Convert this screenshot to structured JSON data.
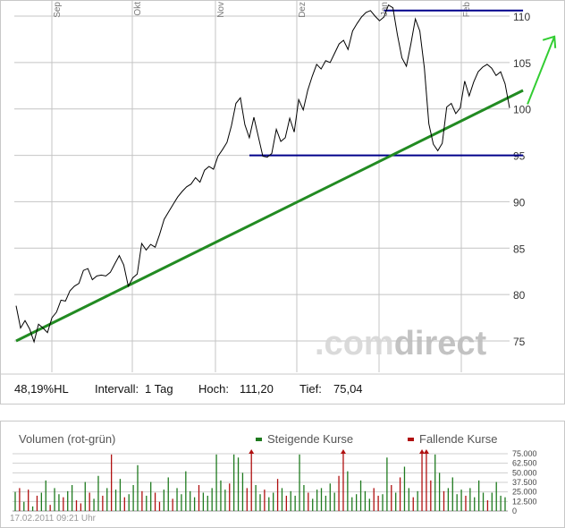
{
  "chart_data": [
    {
      "type": "line",
      "months": [
        "Sep",
        "Okt",
        "Nov",
        "Dez",
        "Jan",
        "Feb"
      ],
      "yticks": [
        "75",
        "80",
        "85",
        "90",
        "95",
        "100",
        "105",
        "110"
      ],
      "ylim": [
        72,
        114
      ],
      "series": [
        {
          "y": [
            78.8,
            76.4,
            77.2,
            76.3,
            74.9,
            76.8,
            76.4,
            75.9,
            77.5,
            78.1,
            79.4,
            79.3,
            80.4,
            80.9,
            81.2,
            82.6,
            82.8,
            81.6,
            82.0,
            82.1,
            82.0,
            82.4,
            83.3,
            84.2,
            83.2,
            80.9,
            81.8,
            82.2,
            85.5,
            84.8,
            85.4,
            85.1,
            86.5,
            88.1,
            88.9,
            89.7,
            90.5,
            91.1,
            91.6,
            91.9,
            92.6,
            92.1,
            93.4,
            93.8,
            93.5,
            94.9,
            95.6,
            96.4,
            98.2,
            100.6,
            101.2,
            98.3,
            96.9,
            99.1,
            97.0,
            94.9,
            94.8,
            95.2,
            97.8,
            96.5,
            96.9,
            99.0,
            97.5,
            101.0,
            99.9,
            102.0,
            103.5,
            104.8,
            104.3,
            105.2,
            105.0,
            106.0,
            107.0,
            107.4,
            106.4,
            108.4,
            109.2,
            109.9,
            110.4,
            110.6,
            110.0,
            109.5,
            109.9,
            111.2,
            110.9,
            108.0,
            105.5,
            104.6,
            107.0,
            109.7,
            108.4,
            104.4,
            98.4,
            96.2,
            95.5,
            96.3,
            100.2,
            100.6,
            99.5,
            100.1,
            103.0,
            101.4,
            102.9,
            104.0,
            104.5,
            104.8,
            104.4,
            103.6,
            104.0,
            102.7,
            100.1
          ],
          "color": "#000000"
        }
      ],
      "trendline": {
        "from": [
          0,
          75.0
        ],
        "to": [
          113,
          102.0
        ],
        "color": "#228b22"
      },
      "support_line": {
        "from": [
          52,
          95.0
        ],
        "to": [
          113,
          95.0
        ],
        "color": "#00008b"
      },
      "resistance_line": {
        "from": [
          82,
          110.6
        ],
        "to": [
          113,
          110.6
        ],
        "color": "#00008b"
      },
      "target_arrow": {
        "from": [
          114,
          100.5
        ],
        "to": [
          120,
          107.8
        ],
        "color": "#32cd32"
      },
      "grid": true,
      "info": {
        "range_text": "48,19%HL",
        "interval_label": "Intervall:",
        "interval_value": "1 Tag",
        "high_label": "Hoch:",
        "high_value": "111,20",
        "low_label": "Tief:",
        "low_value": "75,04"
      },
      "watermark": "comdirect"
    },
    {
      "type": "bar",
      "title": "Volumen (rot-grün)",
      "legend": [
        {
          "name": "Steigende Kurse",
          "color": "#1e7a1e"
        },
        {
          "name": "Fallende Kurse",
          "color": "#b01010"
        }
      ],
      "yticks": [
        "75.000",
        "62.500",
        "50.000",
        "37.500",
        "25.000",
        "12.500",
        "0"
      ],
      "ylim": [
        0,
        75000
      ],
      "values": [
        25000,
        30000,
        12000,
        28000,
        6000,
        20000,
        24000,
        40000,
        8000,
        30000,
        22000,
        18000,
        26000,
        34000,
        14000,
        10000,
        38000,
        24000,
        16000,
        46000,
        20000,
        30000,
        74000,
        28000,
        42000,
        18000,
        22000,
        34000,
        60000,
        26000,
        20000,
        38000,
        24000,
        12000,
        28000,
        44000,
        16000,
        30000,
        22000,
        52000,
        26000,
        18000,
        34000,
        24000,
        20000,
        30000,
        74000,
        40000,
        28000,
        36000,
        74000,
        70000,
        50000,
        30000,
        76000,
        34000,
        22000,
        28000,
        18000,
        24000,
        42000,
        30000,
        20000,
        26000,
        20000,
        74000,
        34000,
        24000,
        16000,
        28000,
        30000,
        20000,
        36000,
        24000,
        46000,
        76000,
        52000,
        18000,
        22000,
        40000,
        26000,
        16000,
        30000,
        20000,
        22000,
        70000,
        34000,
        24000,
        44000,
        58000,
        30000,
        18000,
        26000,
        76000,
        76000,
        40000,
        74000,
        50000,
        26000,
        30000,
        44000,
        22000,
        28000,
        20000,
        30000,
        18000,
        40000,
        24000,
        14000,
        24000,
        38000,
        20000,
        18000
      ],
      "directions": [
        "up",
        "down",
        "up",
        "down",
        "up",
        "down",
        "up",
        "up",
        "down",
        "up",
        "up",
        "down",
        "up",
        "up",
        "down",
        "down",
        "up",
        "down",
        "up",
        "up",
        "down",
        "up",
        "down",
        "up",
        "up",
        "down",
        "up",
        "up",
        "up",
        "down",
        "up",
        "up",
        "down",
        "down",
        "up",
        "up",
        "down",
        "up",
        "up",
        "up",
        "up",
        "up",
        "down",
        "up",
        "up",
        "up",
        "up",
        "up",
        "up",
        "down",
        "up",
        "up",
        "up",
        "down",
        "down",
        "up",
        "up",
        "down",
        "up",
        "up",
        "down",
        "up",
        "down",
        "up",
        "up",
        "up",
        "up",
        "down",
        "up",
        "up",
        "up",
        "up",
        "up",
        "up",
        "down",
        "down",
        "up",
        "up",
        "up",
        "up",
        "up",
        "up",
        "down",
        "down",
        "up",
        "up",
        "down",
        "up",
        "down",
        "up",
        "up",
        "down",
        "up",
        "down",
        "down",
        "down",
        "up",
        "up",
        "down",
        "up",
        "up",
        "up",
        "up",
        "down",
        "up",
        "up",
        "up",
        "up",
        "down",
        "up",
        "up",
        "up",
        "up"
      ],
      "timestamp": "17.02.2011 09:21 Uhr"
    }
  ]
}
